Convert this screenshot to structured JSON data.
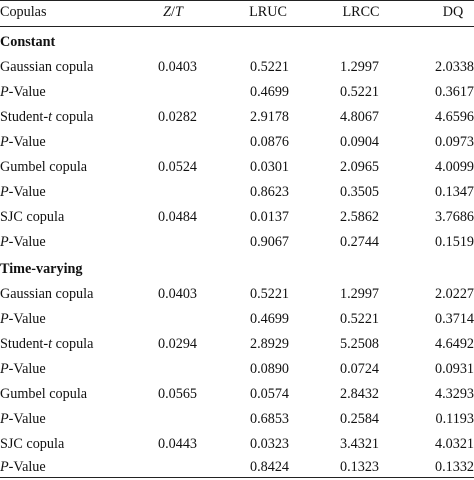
{
  "table": {
    "headers": {
      "col0": "Copulas",
      "col1_italic_a": "Z",
      "col1_slash": "/",
      "col1_italic_b": "T",
      "col2": "LRUC",
      "col3": "LRCC",
      "col4": "DQ"
    },
    "sections": [
      {
        "title": "Constant",
        "rows": [
          {
            "label": "Gaussian copula",
            "zt": "0.0403",
            "lruc": "0.5221",
            "lrcc": "1.2997",
            "dq": "2.0338"
          },
          {
            "label_italic": "P",
            "label_rest": "-Value",
            "zt": "",
            "lruc": "0.4699",
            "lrcc": "0.5221",
            "dq": "0.3617"
          },
          {
            "label_pre": "Student-",
            "label_italic": "t",
            "label_post": " copula",
            "zt": "0.0282",
            "lruc": "2.9178",
            "lrcc": "4.8067",
            "dq": "4.6596"
          },
          {
            "label_italic": "P",
            "label_rest": "-Value",
            "zt": "",
            "lruc": "0.0876",
            "lrcc": "0.0904",
            "dq": "0.0973"
          },
          {
            "label": "Gumbel copula",
            "zt": "0.0524",
            "lruc": "0.0301",
            "lrcc": "2.0965",
            "dq": "4.0099"
          },
          {
            "label_italic": "P",
            "label_rest": "-Value",
            "zt": "",
            "lruc": "0.8623",
            "lrcc": "0.3505",
            "dq": "0.1347"
          },
          {
            "label": "SJC copula",
            "zt": "0.0484",
            "lruc": "0.0137",
            "lrcc": "2.5862",
            "dq": "3.7686"
          },
          {
            "label_italic": "P",
            "label_rest": "-Value",
            "zt": "",
            "lruc": "0.9067",
            "lrcc": "0.2744",
            "dq": "0.1519"
          }
        ]
      },
      {
        "title": "Time-varying",
        "rows": [
          {
            "label": "Gaussian copula",
            "zt": "0.0403",
            "lruc": "0.5221",
            "lrcc": "1.2997",
            "dq": "2.0227"
          },
          {
            "label_italic": "P",
            "label_rest": "-Value",
            "zt": "",
            "lruc": "0.4699",
            "lrcc": "0.5221",
            "dq": "0.3714"
          },
          {
            "label_pre": "Student-",
            "label_italic": "t",
            "label_post": " copula",
            "zt": "0.0294",
            "lruc": "2.8929",
            "lrcc": "5.2508",
            "dq": "4.6492"
          },
          {
            "label_italic": "P",
            "label_rest": "-Value",
            "zt": "",
            "lruc": "0.0890",
            "lrcc": "0.0724",
            "dq": "0.0931"
          },
          {
            "label": "Gumbel copula",
            "zt": "0.0565",
            "lruc": "0.0574",
            "lrcc": "2.8432",
            "dq": "4.3293"
          },
          {
            "label_italic": "P",
            "label_rest": "-Value",
            "zt": "",
            "lruc": "0.6853",
            "lrcc": "0.2584",
            "dq": "0.1193"
          },
          {
            "label": "SJC copula",
            "zt": "0.0443",
            "lruc": "0.0323",
            "lrcc": "3.4321",
            "dq": "4.0321"
          },
          {
            "label_italic": "P",
            "label_rest": "-Value",
            "zt": "",
            "lruc": "0.8424",
            "lrcc": "0.1323",
            "dq": "0.1332"
          }
        ]
      }
    ]
  }
}
